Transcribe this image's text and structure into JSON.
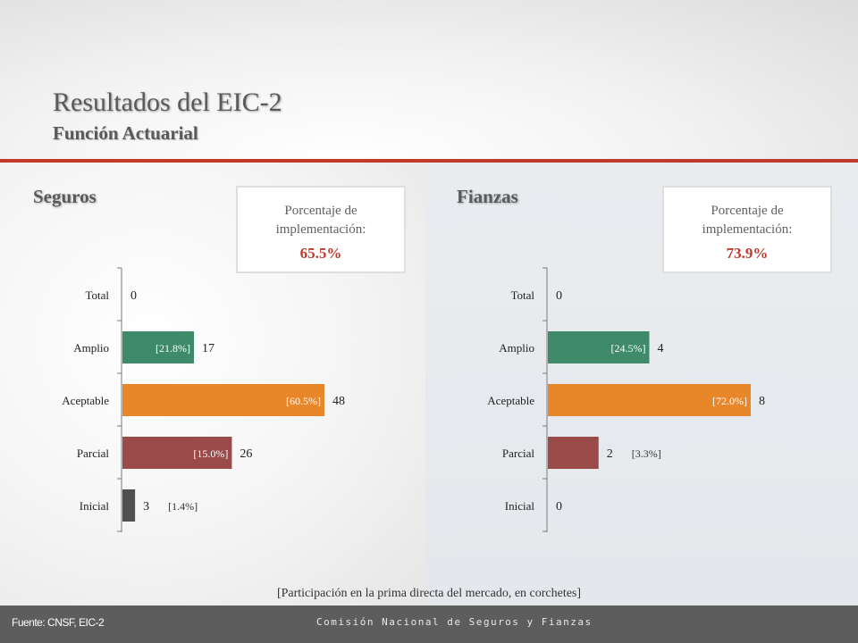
{
  "header": {
    "title": "Resultados del EIC-2",
    "subtitle": "Función Actuarial"
  },
  "sections": {
    "seguros": {
      "title": "Seguros",
      "pct_label": "Porcentaje de implementación:",
      "pct_value": "65.5%"
    },
    "fianzas": {
      "title": "Fianzas",
      "pct_label": "Porcentaje de implementación:",
      "pct_value": "73.9%"
    }
  },
  "colors": {
    "Total": "#3f8a68",
    "Amplio": "#3f8a68",
    "Aceptable": "#e8862a",
    "Parcial": "#9b4a4a",
    "Inicial": "#505050",
    "accent": "#c0392b"
  },
  "chart_data": [
    {
      "type": "bar",
      "orientation": "horizontal",
      "categories": [
        "Total",
        "Amplio",
        "Aceptable",
        "Parcial",
        "Inicial"
      ],
      "values": [
        0,
        17,
        48,
        26,
        3
      ],
      "shares": [
        "",
        "[21.8%]",
        "[60.5%]",
        "[15.0%]",
        "[1.4%]"
      ],
      "share_inside": [
        false,
        true,
        true,
        true,
        false
      ],
      "xlim": [
        0,
        48
      ],
      "grid": false
    },
    {
      "type": "bar",
      "orientation": "horizontal",
      "categories": [
        "Total",
        "Amplio",
        "Aceptable",
        "Parcial",
        "Inicial"
      ],
      "values": [
        0,
        4,
        8,
        2,
        0
      ],
      "shares": [
        "",
        "[24.5%]",
        "[72.0%]",
        "[3.3%]",
        ""
      ],
      "share_inside": [
        false,
        true,
        true,
        false,
        false
      ],
      "xlim": [
        0,
        8
      ],
      "grid": false
    }
  ],
  "footer": {
    "note": "[Participación en la prima directa del mercado, en corchetes]",
    "source": "Fuente: CNSF, EIC-2",
    "org": "Comisión Nacional de Seguros y Fianzas"
  }
}
